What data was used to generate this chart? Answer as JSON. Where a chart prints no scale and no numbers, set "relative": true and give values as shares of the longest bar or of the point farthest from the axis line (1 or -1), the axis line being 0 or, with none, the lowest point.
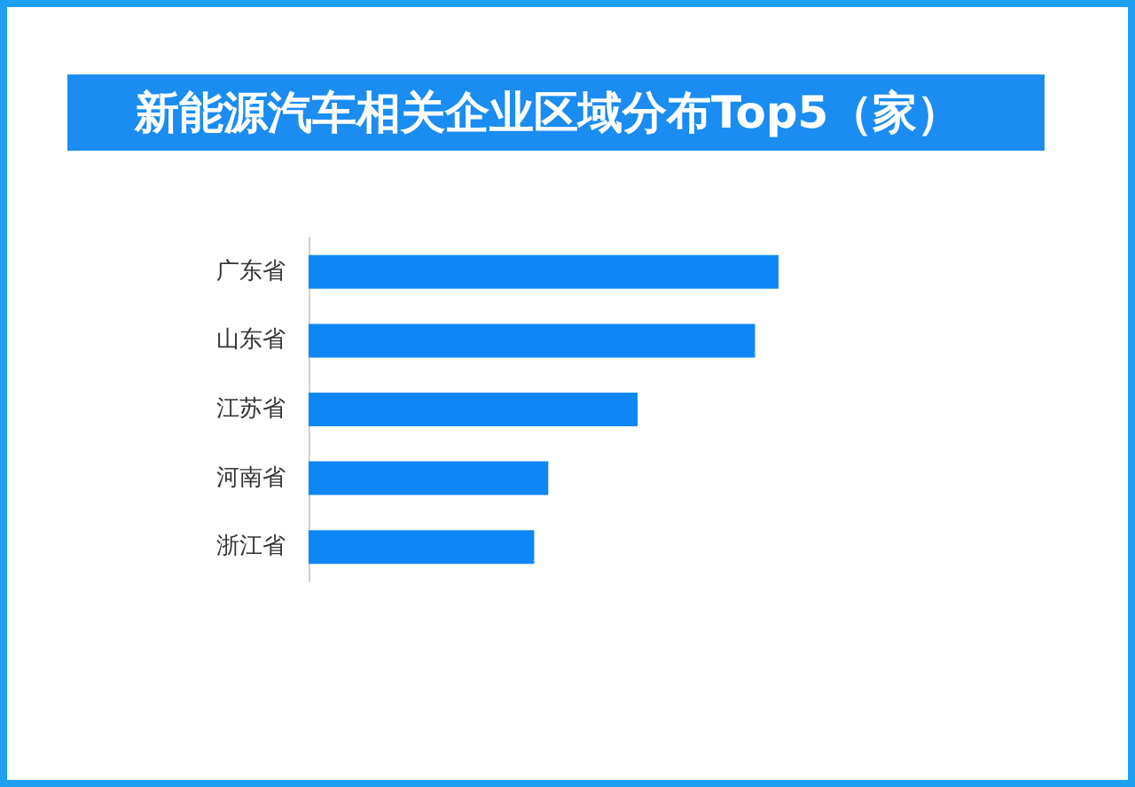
{
  "chart_data": {
    "type": "bar",
    "orientation": "horizontal",
    "relative": true,
    "title": "新能源汽车相关企业区域分布Top5（家）",
    "categories": [
      "广东省",
      "山东省",
      "江苏省",
      "河南省",
      "浙江省"
    ],
    "values": [
      1,
      0.95,
      0.7,
      0.51,
      0.48
    ],
    "color": "#0f86f5"
  }
}
